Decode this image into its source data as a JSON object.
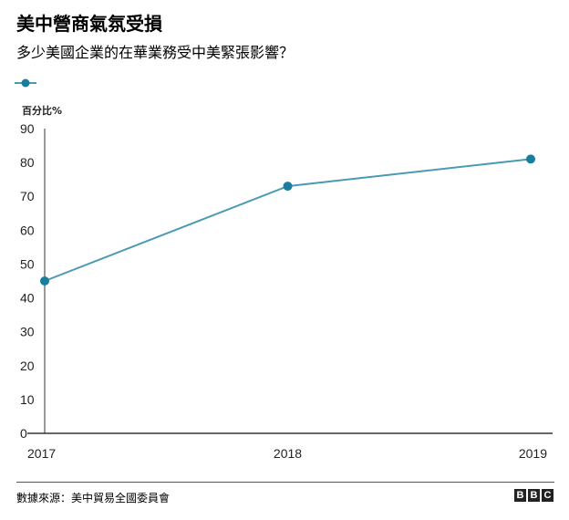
{
  "header": {
    "title": "美中營商氣氛受損",
    "subtitle": "多少美國企業的在華業務受中美緊張影響？"
  },
  "legend": {
    "label": ""
  },
  "footer": {
    "source": "數據來源：美中貿易全國委員會",
    "brand_letters": [
      "B",
      "B",
      "C"
    ]
  },
  "colors": {
    "series": "#4a9ab5",
    "marker": "#1a7d9e",
    "axis": "#333333"
  },
  "chart_data": {
    "type": "line",
    "title": "美中營商氣氛受損",
    "subtitle": "多少美國企業的在華業務受中美緊張影響？",
    "ylabel": "百分比%",
    "xlabel": "",
    "ylim": [
      0,
      90
    ],
    "yticks": [
      0,
      10,
      20,
      30,
      40,
      50,
      60,
      70,
      80,
      90
    ],
    "x": [
      "2017",
      "2018",
      "2019"
    ],
    "series": [
      {
        "name": "",
        "values": [
          45,
          73,
          81
        ]
      }
    ],
    "grid": false
  }
}
